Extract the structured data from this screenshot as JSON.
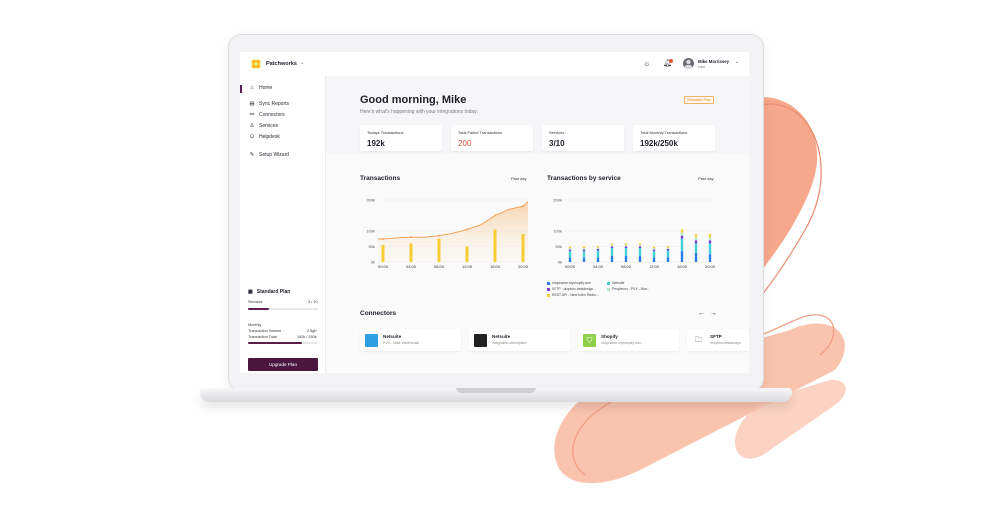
{
  "app": {
    "brand": "Patchworks"
  },
  "user": {
    "name": "Mike Morrissey",
    "role": "User"
  },
  "sidebar": {
    "items": [
      {
        "label": "Home",
        "icon": "home-icon"
      },
      {
        "label": "Sync Reports",
        "icon": "report-icon"
      },
      {
        "label": "Connectors",
        "icon": "connector-icon"
      },
      {
        "label": "Services",
        "icon": "services-icon"
      },
      {
        "label": "Helpdesk",
        "icon": "help-icon"
      },
      {
        "label": "Setup Wizard",
        "icon": "wizard-icon"
      }
    ],
    "plan": {
      "title": "Standard Plan",
      "services_label": "Services",
      "services_value": "3 / 10",
      "services_progress": 0.3,
      "monthly_label": "Monthly",
      "volume_label": "Transaction Volume",
      "volume_value": "2.5gb",
      "total_label": "Transaction Total",
      "total_value": "192k / 250k",
      "total_progress": 0.77,
      "upgrade_label": "Upgrade Plan"
    }
  },
  "header": {
    "greeting": "Good morning, Mike",
    "subtitle": "Here's what's happening with your integrations today.",
    "badge": "Standard Plan"
  },
  "stats": [
    {
      "label": "Todays Transactions",
      "value": "192k"
    },
    {
      "label": "Total Failed Transactions",
      "value": "200"
    },
    {
      "label": "Services",
      "value": "3/10"
    },
    {
      "label": "Total Monthly Transactions",
      "value": "192k/250k"
    }
  ],
  "transactions_card": {
    "title": "Transactions",
    "period": "Past day"
  },
  "service_card": {
    "title": "Transactions by service",
    "period": "Past day"
  },
  "chart_data": [
    {
      "type": "bar",
      "title": "Transactions",
      "categories": [
        "00:00",
        "04:00",
        "08:00",
        "12:00",
        "16:00",
        "20:00"
      ],
      "values": [
        55,
        60,
        75,
        50,
        105,
        90
      ],
      "line": {
        "x": [
          -2,
          0,
          2,
          4,
          6,
          8,
          10,
          12,
          14,
          16,
          18,
          20,
          22
        ],
        "values": [
          75,
          74,
          78,
          80,
          80,
          85,
          93,
          105,
          120,
          150,
          170,
          180,
          195
        ]
      },
      "yticks": [
        "0k",
        "50k",
        "100k",
        "200k"
      ],
      "ylim": [
        0,
        200
      ]
    },
    {
      "type": "bar",
      "title": "Transactions by service",
      "categories": [
        "00:00",
        "04:00",
        "08:00",
        "12:00",
        "16:00",
        "20:00"
      ],
      "x": [
        "00:00",
        "02:00",
        "04:00",
        "06:00",
        "08:00",
        "10:00",
        "12:00",
        "14:00",
        "16:00",
        "18:00",
        "20:00"
      ],
      "series": [
        {
          "name": "shopname.myshopify.com",
          "color": "#2d7ee8",
          "values": [
            15,
            15,
            15,
            20,
            20,
            20,
            15,
            15,
            35,
            30,
            25
          ]
        },
        {
          "name": "Netsuite",
          "color": "#41d1d1",
          "values": [
            20,
            20,
            22,
            25,
            25,
            25,
            20,
            22,
            40,
            30,
            35
          ]
        },
        {
          "name": "SFTP - dropbox.bestdesign...",
          "color": "#7b3fd6",
          "values": [
            5,
            5,
            5,
            5,
            5,
            5,
            5,
            5,
            10,
            10,
            10
          ]
        },
        {
          "name": "Peoplevox - PVX - Mon...",
          "color": "#b9e2c6",
          "values": [
            5,
            5,
            5,
            5,
            5,
            5,
            5,
            5,
            10,
            10,
            10
          ]
        },
        {
          "name": "REST API - NewYork's Radio...",
          "color": "#f3d13b",
          "values": [
            5,
            5,
            5,
            5,
            5,
            5,
            5,
            5,
            10,
            10,
            10
          ]
        }
      ],
      "yticks": [
        "0k",
        "50k",
        "100k",
        "200k"
      ],
      "ylim": [
        0,
        200
      ]
    }
  ],
  "connectors": {
    "title": "Connectors",
    "prev_icon": "arrow-left-icon",
    "next_icon": "arrow-right-icon",
    "items": [
      {
        "name": "Netsuite",
        "desc": "PVX - Mike Warehouse",
        "color": "#2d9fe0"
      },
      {
        "name": "Netsuite",
        "desc": "integration-description",
        "color": "#222222"
      },
      {
        "name": "Shopify",
        "desc": "shopname.myshopify.com",
        "color": "#8fcf4b"
      },
      {
        "name": "SFTP",
        "desc": "dropbox.bestdesign",
        "color": "#ffffff"
      }
    ]
  },
  "colors": {
    "accent": "#5a1d4c",
    "orange": "#f29a4a",
    "bar_yellow": "#f6cd33",
    "danger": "#e4533b"
  }
}
